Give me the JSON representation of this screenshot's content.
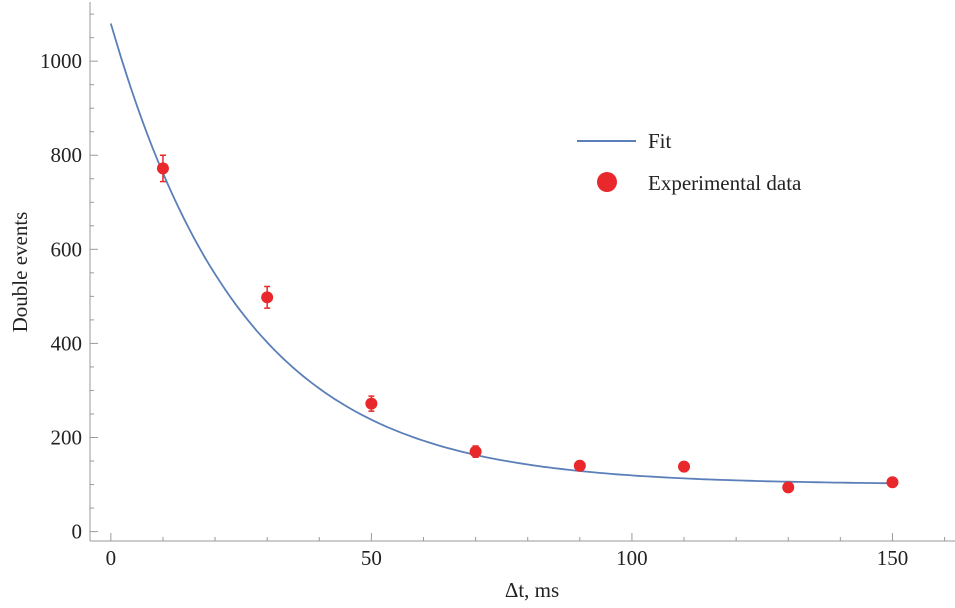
{
  "colors": {
    "fit": "#5b7fb8",
    "points": "#e8282b",
    "axis": "#9a9a9a",
    "text": "#222222"
  },
  "chart_data": {
    "type": "scatter",
    "title": "",
    "xlabel": "Δt, ms",
    "ylabel": "Double events",
    "xlim": [
      -4,
      162
    ],
    "ylim": [
      -20,
      1130
    ],
    "x_ticks_major": [
      0,
      50,
      100,
      150
    ],
    "x_tick_labels": [
      "0",
      "50",
      "100",
      "150"
    ],
    "y_ticks_major": [
      0,
      200,
      400,
      600,
      800,
      1000
    ],
    "y_tick_labels": [
      "0",
      "200",
      "400",
      "600",
      "800",
      "1000"
    ],
    "grid": false,
    "legend": {
      "placement": "top-right",
      "entries": [
        {
          "label": "Fit",
          "marker": "line"
        },
        {
          "label": "Experimental data",
          "marker": "circle"
        }
      ]
    },
    "series": [
      {
        "name": "Experimental data",
        "kind": "scatter",
        "x": [
          10,
          30,
          50,
          70,
          90,
          110,
          130,
          150
        ],
        "y": [
          772,
          498,
          272,
          170,
          140,
          138,
          94,
          105
        ],
        "err": [
          28,
          23,
          16,
          12,
          10,
          10,
          9,
          9
        ]
      },
      {
        "name": "Fit",
        "kind": "line",
        "model": "y = 100 + 980 * exp(-x / 25.5)",
        "x": [
          0,
          5,
          10,
          15,
          20,
          25,
          30,
          35,
          40,
          45,
          50,
          55,
          60,
          65,
          70,
          75,
          80,
          85,
          90,
          95,
          100,
          105,
          110,
          115,
          120,
          125,
          130,
          135,
          140,
          145,
          150
        ],
        "y": [
          1080,
          901,
          763,
          654,
          548,
          468,
          405,
          346,
          304,
          272,
          237,
          213,
          193,
          177,
          163,
          153,
          143,
          136,
          129,
          124,
          119,
          115,
          112,
          110,
          108,
          107,
          106,
          105,
          104,
          103,
          103
        ]
      }
    ]
  }
}
